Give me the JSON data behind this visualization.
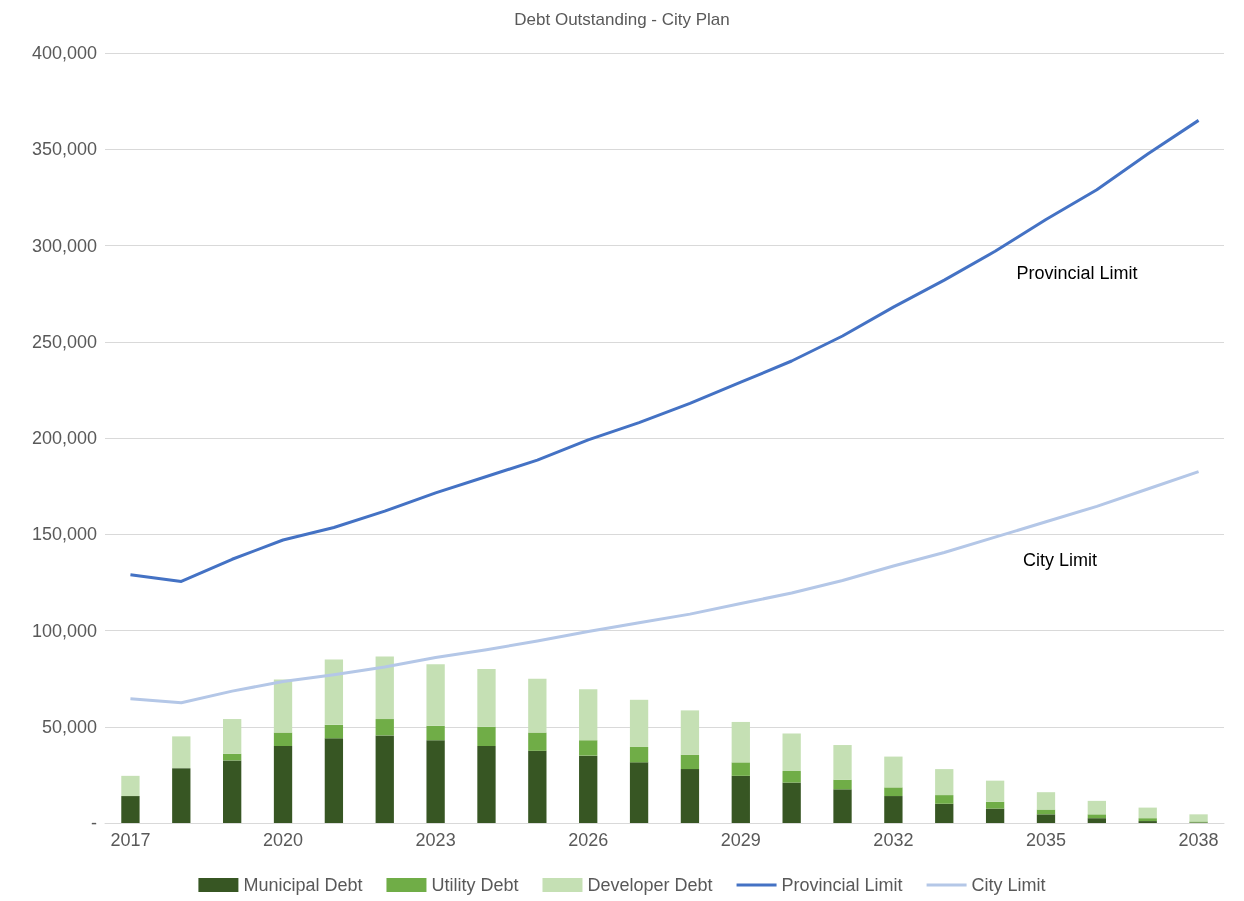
{
  "chart_data": {
    "type": "bar",
    "title": "Debt Outstanding - City Plan",
    "categories": [
      "2017",
      null,
      null,
      "2020",
      null,
      null,
      "2023",
      null,
      null,
      "2026",
      null,
      null,
      "2029",
      null,
      null,
      "2032",
      null,
      null,
      "2035",
      null,
      null,
      "2038"
    ],
    "stacked": true,
    "series": [
      {
        "name": "Municipal Debt",
        "color": "#375623",
        "values": [
          14000,
          28500,
          32500,
          40000,
          44000,
          45500,
          43000,
          40000,
          37500,
          35000,
          31500,
          28000,
          24500,
          21000,
          17500,
          14000,
          10000,
          7500,
          4500,
          2500,
          1000,
          300
        ]
      },
      {
        "name": "Utility Debt",
        "color": "#70ad47",
        "values": [
          0,
          0,
          3500,
          7000,
          7000,
          8500,
          7500,
          10000,
          9500,
          8000,
          8000,
          7500,
          7000,
          6000,
          5000,
          4500,
          4500,
          3500,
          2500,
          2000,
          1500,
          500
        ]
      },
      {
        "name": "Developer Debt",
        "color": "#c5e0b4",
        "values": [
          10500,
          16500,
          18000,
          27500,
          34000,
          32500,
          32000,
          30000,
          28000,
          26500,
          24500,
          23000,
          21000,
          19500,
          18000,
          16000,
          13500,
          11000,
          9000,
          7000,
          5500,
          3700
        ]
      },
      {
        "name": "Provincial Limit",
        "type": "line",
        "color": "#4472c4",
        "values": [
          129000,
          125500,
          137000,
          147000,
          153500,
          162000,
          171500,
          180000,
          188500,
          199000,
          208000,
          218000,
          229000,
          240000,
          253000,
          268000,
          282000,
          297000,
          313500,
          329000,
          347500,
          365000
        ]
      },
      {
        "name": "City Limit",
        "type": "line",
        "color": "#b4c7e7",
        "values": [
          64500,
          62500,
          68500,
          73500,
          77000,
          81000,
          86000,
          90000,
          94500,
          99500,
          104000,
          108500,
          114000,
          119500,
          126000,
          133500,
          140500,
          148500,
          156500,
          164500,
          173500,
          182500
        ]
      }
    ],
    "ylim": [
      0,
      400000
    ],
    "yticks": [
      {
        "value": 0,
        "label": "-"
      },
      {
        "value": 50000,
        "label": "50,000"
      },
      {
        "value": 100000,
        "label": "100,000"
      },
      {
        "value": 150000,
        "label": "150,000"
      },
      {
        "value": 200000,
        "label": "200,000"
      },
      {
        "value": 250000,
        "label": "250,000"
      },
      {
        "value": 300000,
        "label": "300,000"
      },
      {
        "value": 350000,
        "label": "350,000"
      },
      {
        "value": 400000,
        "label": "400,000"
      }
    ],
    "grid": "y",
    "legend": "bottom",
    "marker": "none",
    "line_style": "solid",
    "annotations": [
      "Provincial Limit",
      "City Limit"
    ]
  }
}
